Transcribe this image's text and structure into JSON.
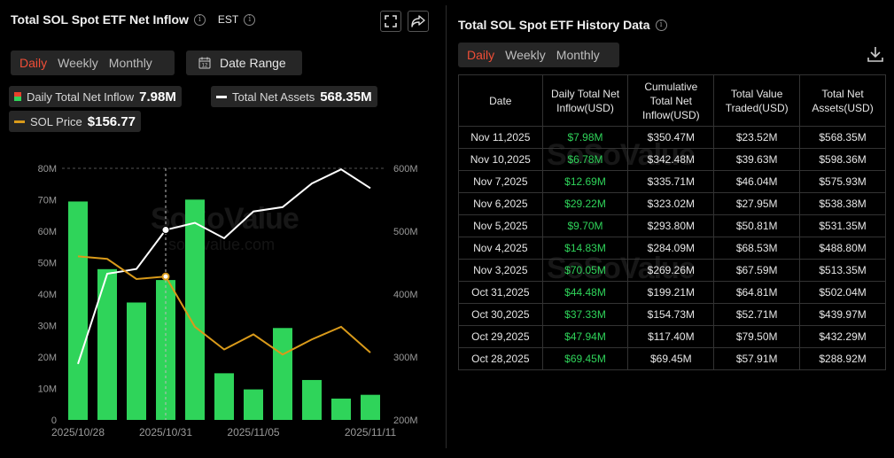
{
  "left": {
    "title": "Total SOL Spot ETF Net Inflow",
    "timezone": "EST",
    "tabs": [
      "Daily",
      "Weekly",
      "Monthly"
    ],
    "active_tab": "Daily",
    "date_range_label": "Date Range",
    "legend": [
      {
        "label": "Daily Total Net Inflow",
        "value": "7.98M"
      },
      {
        "label": "Total Net Assets",
        "value": "568.35M"
      },
      {
        "label": "SOL Price",
        "value": "$156.77"
      }
    ],
    "watermark": "SoSoValue",
    "watermark_sub": "sosovalue.com"
  },
  "right": {
    "title": "Total SOL Spot ETF History Data",
    "tabs": [
      "Daily",
      "Weekly",
      "Monthly"
    ],
    "active_tab": "Daily",
    "columns": [
      "Date",
      "Daily Total Net Inflow(USD)",
      "Cumulative Total Net Inflow(USD)",
      "Total Value Traded(USD)",
      "Total Net Assets(USD)"
    ],
    "rows": [
      [
        "Nov 11,2025",
        "$7.98M",
        "$350.47M",
        "$23.52M",
        "$568.35M"
      ],
      [
        "Nov 10,2025",
        "$6.78M",
        "$342.48M",
        "$39.63M",
        "$598.36M"
      ],
      [
        "Nov 7,2025",
        "$12.69M",
        "$335.71M",
        "$46.04M",
        "$575.93M"
      ],
      [
        "Nov 6,2025",
        "$29.22M",
        "$323.02M",
        "$27.95M",
        "$538.38M"
      ],
      [
        "Nov 5,2025",
        "$9.70M",
        "$293.80M",
        "$50.81M",
        "$531.35M"
      ],
      [
        "Nov 4,2025",
        "$14.83M",
        "$284.09M",
        "$68.53M",
        "$488.80M"
      ],
      [
        "Nov 3,2025",
        "$70.05M",
        "$269.26M",
        "$67.59M",
        "$513.35M"
      ],
      [
        "Oct 31,2025",
        "$44.48M",
        "$199.21M",
        "$64.81M",
        "$502.04M"
      ],
      [
        "Oct 30,2025",
        "$37.33M",
        "$154.73M",
        "$52.71M",
        "$439.97M"
      ],
      [
        "Oct 29,2025",
        "$47.94M",
        "$117.40M",
        "$79.50M",
        "$432.29M"
      ],
      [
        "Oct 28,2025",
        "$69.45M",
        "$69.45M",
        "$57.91M",
        "$288.92M"
      ]
    ]
  },
  "chart_data": {
    "type": "bar",
    "categories": [
      "2025/10/28",
      "2025/10/29",
      "2025/10/30",
      "2025/10/31",
      "2025/11/03",
      "2025/11/04",
      "2025/11/05",
      "2025/11/06",
      "2025/11/07",
      "2025/11/10",
      "2025/11/11"
    ],
    "x_tick_labels": [
      "2025/10/28",
      "2025/10/31",
      "2025/11/05",
      "2025/11/11"
    ],
    "series": [
      {
        "name": "Daily Total Net Inflow",
        "type": "bar",
        "axis": "left",
        "values": [
          69.45,
          47.94,
          37.33,
          44.48,
          70.05,
          14.83,
          9.7,
          29.22,
          12.69,
          6.78,
          7.98
        ]
      },
      {
        "name": "Total Net Assets",
        "type": "line",
        "axis": "right",
        "values": [
          288.92,
          432.29,
          439.97,
          502.04,
          513.35,
          488.8,
          531.35,
          538.38,
          575.93,
          598.36,
          568.35
        ]
      },
      {
        "name": "SOL Price",
        "type": "line",
        "axis": "hidden",
        "values": [
          195,
          194,
          186,
          187,
          167,
          158,
          164,
          156,
          162,
          167,
          156.77
        ]
      }
    ],
    "left_axis": {
      "ticks": [
        0,
        10,
        20,
        30,
        40,
        50,
        60,
        70,
        80
      ],
      "labels": [
        "0",
        "10M",
        "20M",
        "30M",
        "40M",
        "50M",
        "60M",
        "70M",
        "80M"
      ],
      "range": [
        0,
        80
      ]
    },
    "right_axis": {
      "ticks": [
        200,
        300,
        400,
        500,
        600
      ],
      "labels": [
        "200M",
        "300M",
        "400M",
        "500M",
        "600M"
      ],
      "range": [
        200,
        600
      ]
    },
    "price_range": [
      130,
      230
    ],
    "colors": {
      "bar": "#2fd45a",
      "assets_line": "#ffffff",
      "price_line": "#d99a1a",
      "grid": "#555555",
      "axis_text": "#9a9a9a"
    },
    "grid": "dashed top line only",
    "hover_index": 3
  }
}
